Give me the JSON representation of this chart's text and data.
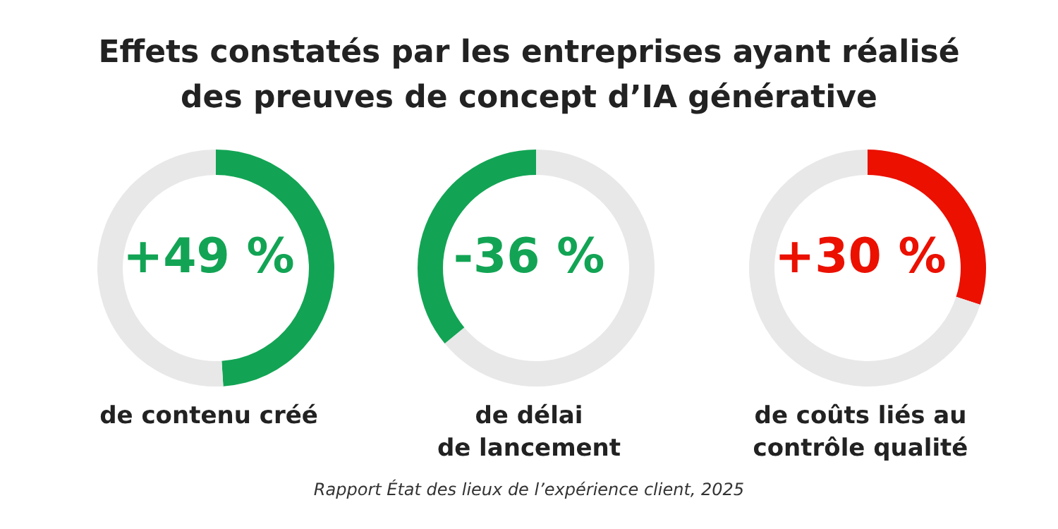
{
  "chart_data": [
    {
      "type": "donut",
      "title": "Effets constatés par les entreprises ayant réalisé des preuves de concept d’IA générative",
      "categories": [
        null,
        null
      ],
      "values": [
        49,
        51
      ],
      "colors": [
        "#12a454",
        "#e8e8e8"
      ],
      "annotations": [
        "+49 %"
      ],
      "xlabel": "de contenu créé"
    },
    {
      "type": "donut",
      "categories": [
        null,
        null
      ],
      "values": [
        64,
        36
      ],
      "colors": [
        "#e8e8e8",
        "#12a454"
      ],
      "annotations": [
        "-36 %"
      ],
      "xlabel": "de délai\nde lancement"
    },
    {
      "type": "donut",
      "categories": [
        null,
        null
      ],
      "values": [
        30,
        70
      ],
      "colors": [
        "#eb1000",
        "#e8e8e8"
      ],
      "annotations": [
        "+30 %",
        "Rapport État des lieux de l’expérience client, 2025"
      ],
      "xlabel": "de coûts liés au\ncontrôle qualité"
    }
  ]
}
